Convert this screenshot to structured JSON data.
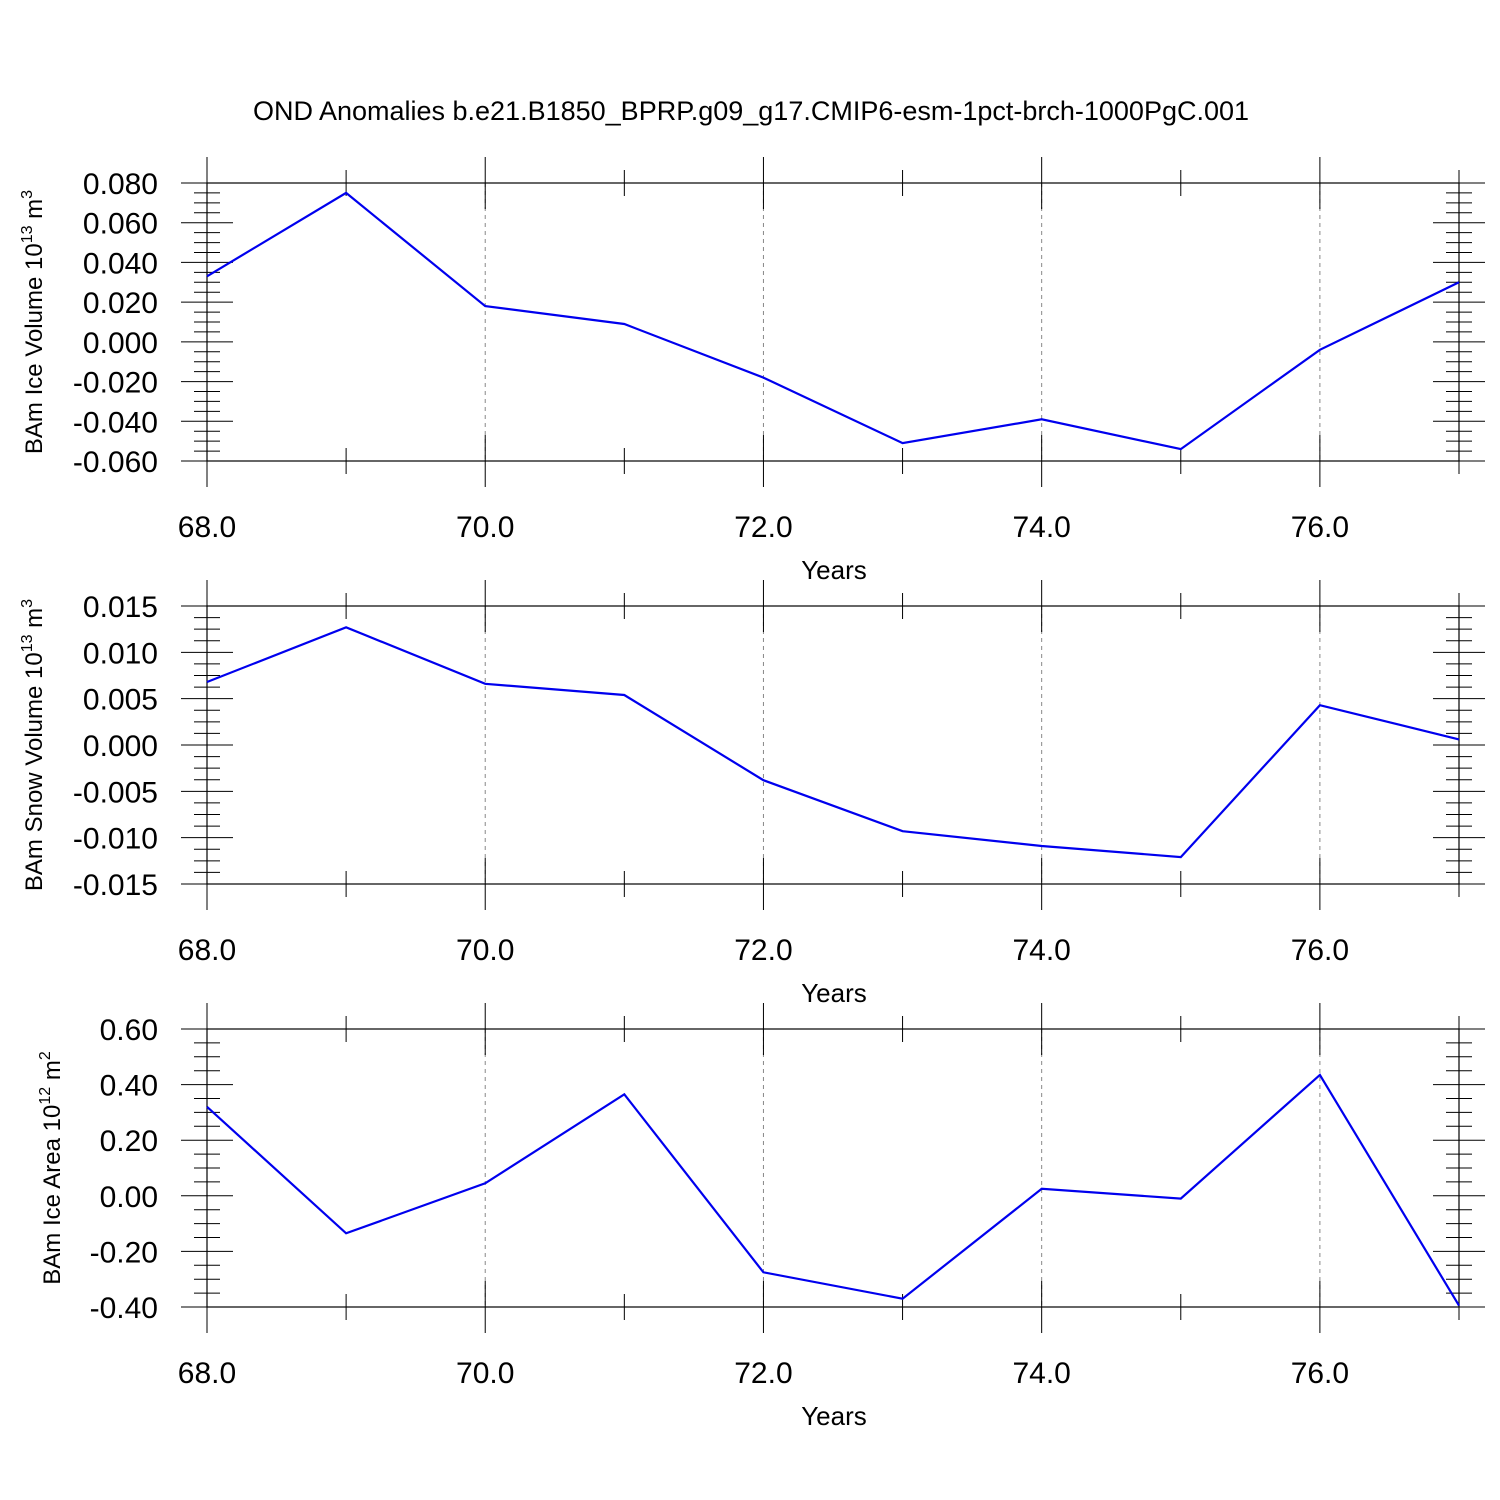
{
  "title": "OND Anomalies b.e21.B1850_BPRP.g09_g17.CMIP6-esm-1pct-brch-1000PgC.001",
  "colors": {
    "series": "#0000ee",
    "axes": "#000000",
    "grid": "#888888"
  },
  "chart_data": [
    {
      "type": "line",
      "ylabel": {
        "text": "BAm Ice Volume 10",
        "sup": "13",
        "unit": " m",
        "unit_sup": "3"
      },
      "xlabel": "Years",
      "x": [
        68,
        69,
        70,
        71,
        72,
        73,
        74,
        75,
        76,
        77
      ],
      "values": [
        0.033,
        0.075,
        0.018,
        0.009,
        -0.018,
        -0.051,
        -0.039,
        -0.054,
        -0.004,
        0.03
      ],
      "xlim": [
        68,
        77
      ],
      "ylim": [
        -0.06,
        0.08
      ],
      "yticks": [
        0.08,
        0.06,
        0.04,
        0.02,
        0.0,
        -0.02,
        -0.04,
        -0.06
      ],
      "ytick_labels": [
        "0.080",
        "0.060",
        "0.040",
        "0.020",
        "0.000",
        "-0.020",
        "-0.040",
        "-0.060"
      ],
      "xticks": [
        68,
        70,
        72,
        74,
        76
      ],
      "xtick_labels": [
        "68.0",
        "70.0",
        "72.0",
        "74.0",
        "76.0"
      ],
      "grid": "vertical dashed at major x ticks"
    },
    {
      "type": "line",
      "ylabel": {
        "text": "BAm Snow Volume 10",
        "sup": "13",
        "unit": " m",
        "unit_sup": "3"
      },
      "xlabel": "Years",
      "x": [
        68,
        69,
        70,
        71,
        72,
        73,
        74,
        75,
        76,
        77
      ],
      "values": [
        0.0068,
        0.0127,
        0.0066,
        0.0054,
        -0.0038,
        -0.0093,
        -0.0109,
        -0.0121,
        0.0043,
        0.0006
      ],
      "xlim": [
        68,
        77
      ],
      "ylim": [
        -0.015,
        0.015
      ],
      "yticks": [
        0.015,
        0.01,
        0.005,
        0.0,
        -0.005,
        -0.01,
        -0.015
      ],
      "ytick_labels": [
        "0.015",
        "0.010",
        "0.005",
        "0.000",
        "-0.005",
        "-0.010",
        "-0.015"
      ],
      "xticks": [
        68,
        70,
        72,
        74,
        76
      ],
      "xtick_labels": [
        "68.0",
        "70.0",
        "72.0",
        "74.0",
        "76.0"
      ],
      "grid": "vertical dashed at major x ticks"
    },
    {
      "type": "line",
      "ylabel": {
        "text": "BAm Ice Area 10",
        "sup": "12",
        "unit": " m",
        "unit_sup": "2"
      },
      "xlabel": "Years",
      "x": [
        68,
        69,
        70,
        71,
        72,
        73,
        74,
        75,
        76,
        77
      ],
      "values": [
        0.32,
        -0.135,
        0.045,
        0.365,
        -0.275,
        -0.37,
        0.025,
        -0.01,
        0.435,
        -0.395
      ],
      "xlim": [
        68,
        77
      ],
      "ylim": [
        -0.4,
        0.6
      ],
      "yticks": [
        0.6,
        0.4,
        0.2,
        0.0,
        -0.2,
        -0.4
      ],
      "ytick_labels": [
        "0.60",
        "0.40",
        "0.20",
        "0.00",
        "-0.20",
        "-0.40"
      ],
      "xticks": [
        68,
        70,
        72,
        74,
        76
      ],
      "xtick_labels": [
        "68.0",
        "70.0",
        "72.0",
        "74.0",
        "76.0"
      ],
      "grid": "vertical dashed at major x ticks"
    }
  ]
}
